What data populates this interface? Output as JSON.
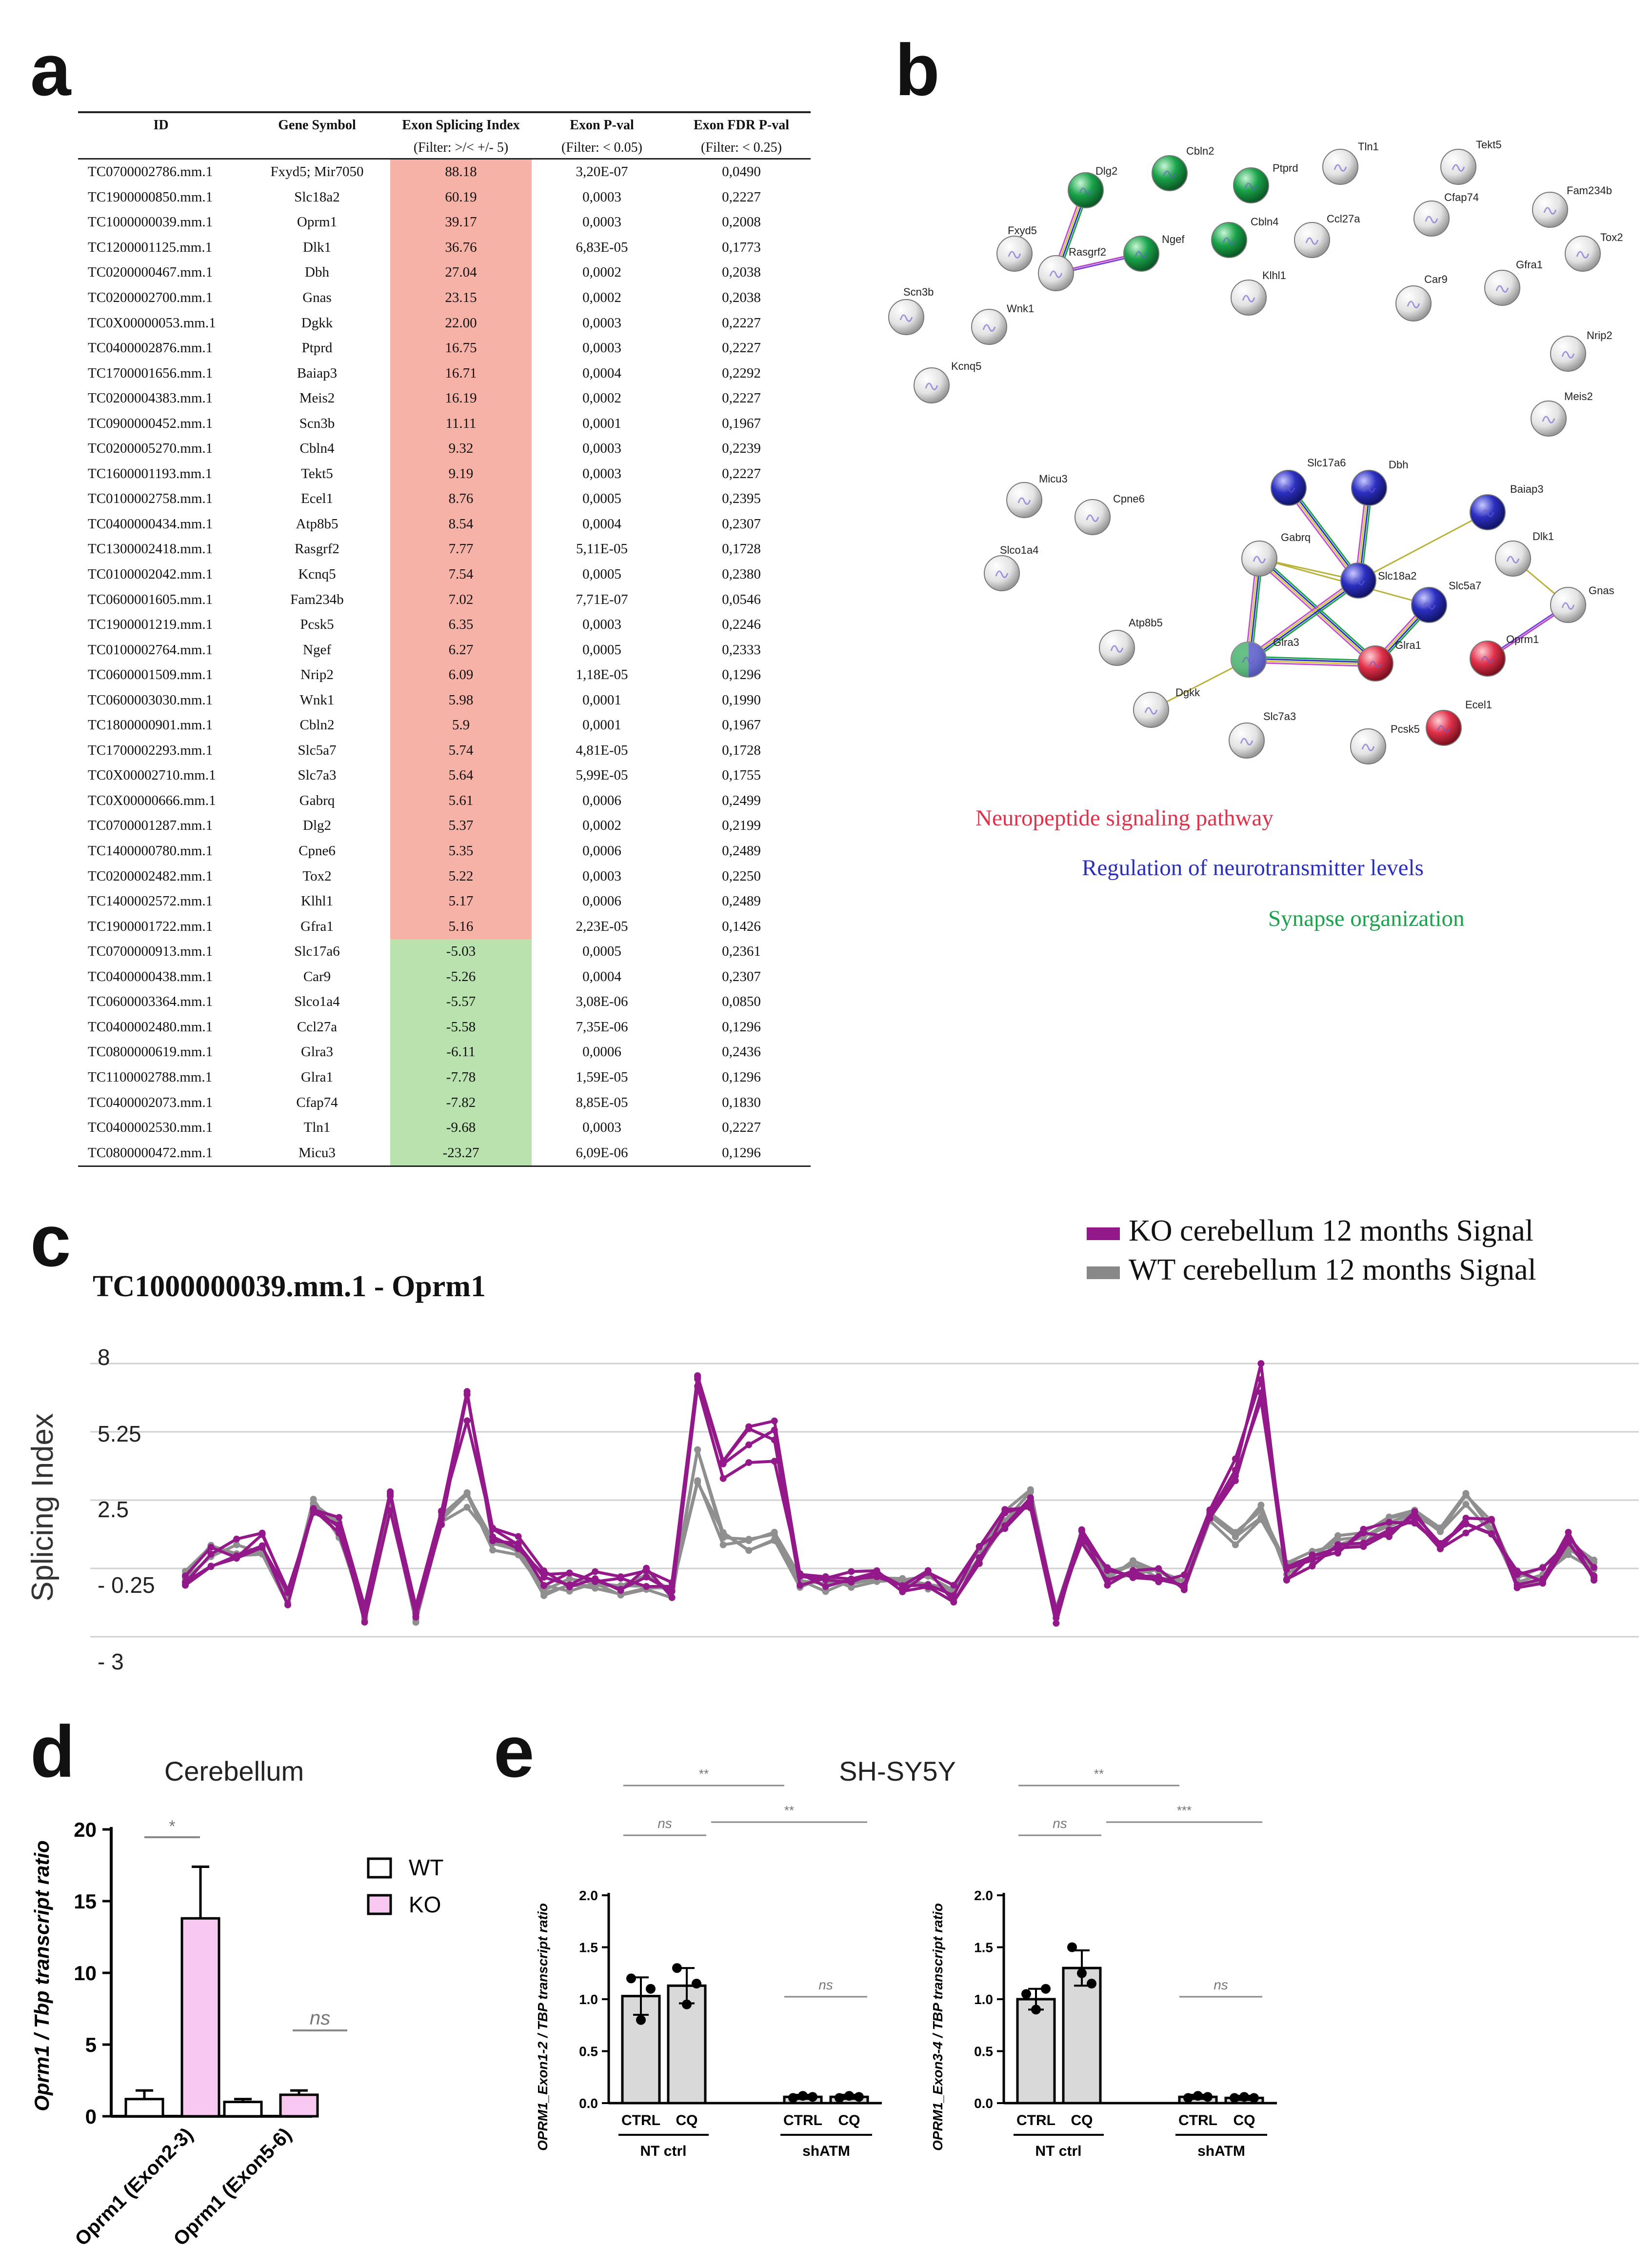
{
  "panels": {
    "a": "a",
    "b": "b",
    "c": "c",
    "d": "d",
    "e": "e"
  },
  "table": {
    "headers": [
      "ID",
      "Gene Symbol",
      "Exon Splicing Index",
      "Exon P-val",
      "Exon FDR P-val"
    ],
    "filters": [
      "",
      "",
      "(Filter: >/< +/- 5)",
      "(Filter: < 0.05)",
      "(Filter: < 0.25)"
    ],
    "rows": [
      [
        "TC0700002786.mm.1",
        "Fxyd5; Mir7050",
        "88.18",
        "3,20E-07",
        "0,0490"
      ],
      [
        "TC1900000850.mm.1",
        "Slc18a2",
        "60.19",
        "0,0003",
        "0,2227"
      ],
      [
        "TC1000000039.mm.1",
        "Oprm1",
        "39.17",
        "0,0003",
        "0,2008"
      ],
      [
        "TC1200001125.mm.1",
        "Dlk1",
        "36.76",
        "6,83E-05",
        "0,1773"
      ],
      [
        "TC0200000467.mm.1",
        "Dbh",
        "27.04",
        "0,0002",
        "0,2038"
      ],
      [
        "TC0200002700.mm.1",
        "Gnas",
        "23.15",
        "0,0002",
        "0,2038"
      ],
      [
        "TC0X00000053.mm.1",
        "Dgkk",
        "22.00",
        "0,0003",
        "0,2227"
      ],
      [
        "TC0400002876.mm.1",
        "Ptprd",
        "16.75",
        "0,0003",
        "0,2227"
      ],
      [
        "TC1700001656.mm.1",
        "Baiap3",
        "16.71",
        "0,0004",
        "0,2292"
      ],
      [
        "TC0200004383.mm.1",
        "Meis2",
        "16.19",
        "0,0002",
        "0,2227"
      ],
      [
        "TC0900000452.mm.1",
        "Scn3b",
        "11.11",
        "0,0001",
        "0,1967"
      ],
      [
        "TC0200005270.mm.1",
        "Cbln4",
        "9.32",
        "0,0003",
        "0,2239"
      ],
      [
        "TC1600001193.mm.1",
        "Tekt5",
        "9.19",
        "0,0003",
        "0,2227"
      ],
      [
        "TC0100002758.mm.1",
        "Ecel1",
        "8.76",
        "0,0005",
        "0,2395"
      ],
      [
        "TC0400000434.mm.1",
        "Atp8b5",
        "8.54",
        "0,0004",
        "0,2307"
      ],
      [
        "TC1300002418.mm.1",
        "Rasgrf2",
        "7.77",
        "5,11E-05",
        "0,1728"
      ],
      [
        "TC0100002042.mm.1",
        "Kcnq5",
        "7.54",
        "0,0005",
        "0,2380"
      ],
      [
        "TC0600001605.mm.1",
        "Fam234b",
        "7.02",
        "7,71E-07",
        "0,0546"
      ],
      [
        "TC1900001219.mm.1",
        "Pcsk5",
        "6.35",
        "0,0003",
        "0,2246"
      ],
      [
        "TC0100002764.mm.1",
        "Ngef",
        "6.27",
        "0,0005",
        "0,2333"
      ],
      [
        "TC0600001509.mm.1",
        "Nrip2",
        "6.09",
        "1,18E-05",
        "0,1296"
      ],
      [
        "TC0600003030.mm.1",
        "Wnk1",
        "5.98",
        "0,0001",
        "0,1990"
      ],
      [
        "TC1800000901.mm.1",
        "Cbln2",
        "5.9",
        "0,0001",
        "0,1967"
      ],
      [
        "TC1700002293.mm.1",
        "Slc5a7",
        "5.74",
        "4,81E-05",
        "0,1728"
      ],
      [
        "TC0X00002710.mm.1",
        "Slc7a3",
        "5.64",
        "5,99E-05",
        "0,1755"
      ],
      [
        "TC0X00000666.mm.1",
        "Gabrq",
        "5.61",
        "0,0006",
        "0,2499"
      ],
      [
        "TC0700001287.mm.1",
        "Dlg2",
        "5.37",
        "0,0002",
        "0,2199"
      ],
      [
        "TC1400000780.mm.1",
        "Cpne6",
        "5.35",
        "0,0006",
        "0,2489"
      ],
      [
        "TC0200002482.mm.1",
        "Tox2",
        "5.22",
        "0,0003",
        "0,2250"
      ],
      [
        "TC1400002572.mm.1",
        "Klhl1",
        "5.17",
        "0,0006",
        "0,2489"
      ],
      [
        "TC1900001722.mm.1",
        "Gfra1",
        "5.16",
        "2,23E-05",
        "0,1426"
      ],
      [
        "TC0700000913.mm.1",
        "Slc17a6",
        "-5.03",
        "0,0005",
        "0,2361"
      ],
      [
        "TC0400000438.mm.1",
        "Car9",
        "-5.26",
        "0,0004",
        "0,2307"
      ],
      [
        "TC0600003364.mm.1",
        "Slco1a4",
        "-5.57",
        "3,08E-06",
        "0,0850"
      ],
      [
        "TC0400002480.mm.1",
        "Ccl27a",
        "-5.58",
        "7,35E-06",
        "0,1296"
      ],
      [
        "TC0800000619.mm.1",
        "Glra3",
        "-6.11",
        "0,0006",
        "0,2436"
      ],
      [
        "TC1100002788.mm.1",
        "Glra1",
        "-7.78",
        "1,59E-05",
        "0,1296"
      ],
      [
        "TC0400002073.mm.1",
        "Cfap74",
        "-7.82",
        "8,85E-05",
        "0,1830"
      ],
      [
        "TC0400002530.mm.1",
        "Tln1",
        "-9.68",
        "0,0003",
        "0,2227"
      ],
      [
        "TC0800000472.mm.1",
        "Micu3",
        "-23.27",
        "6,09E-06",
        "0,1296"
      ]
    ]
  },
  "network": {
    "colors": {
      "neuropeptide": "#e0314a",
      "neurotransmitter": "#2b2fc0",
      "synapse": "#1aa34a",
      "none": "#cfcfcf"
    },
    "nodes": [
      {
        "label": "Dlg2",
        "cls": "synapse"
      },
      {
        "label": "Cbln2",
        "cls": "synapse"
      },
      {
        "label": "Ptprd",
        "cls": "synapse"
      },
      {
        "label": "Tln1",
        "cls": "none"
      },
      {
        "label": "Tekt5",
        "cls": "none"
      },
      {
        "label": "Fxyd5",
        "cls": "none"
      },
      {
        "label": "Rasgrf2",
        "cls": "none"
      },
      {
        "label": "Ngef",
        "cls": "synapse"
      },
      {
        "label": "Cbln4",
        "cls": "synapse"
      },
      {
        "label": "Ccl27a",
        "cls": "none"
      },
      {
        "label": "Cfap74",
        "cls": "none"
      },
      {
        "label": "Fam234b",
        "cls": "none"
      },
      {
        "label": "Tox2",
        "cls": "none"
      },
      {
        "label": "Scn3b",
        "cls": "none"
      },
      {
        "label": "Wnk1",
        "cls": "none"
      },
      {
        "label": "Klhl1",
        "cls": "none"
      },
      {
        "label": "Car9",
        "cls": "none"
      },
      {
        "label": "Gfra1",
        "cls": "none"
      },
      {
        "label": "Nrip2",
        "cls": "none"
      },
      {
        "label": "Kcnq5",
        "cls": "none"
      },
      {
        "label": "Meis2",
        "cls": "none"
      },
      {
        "label": "Slc17a6",
        "cls": "neurotransmitter"
      },
      {
        "label": "Dbh",
        "cls": "neurotransmitter"
      },
      {
        "label": "Micu3",
        "cls": "none"
      },
      {
        "label": "Cpne6",
        "cls": "none"
      },
      {
        "label": "Baiap3",
        "cls": "neurotransmitter"
      },
      {
        "label": "Slco1a4",
        "cls": "none"
      },
      {
        "label": "Gabrq",
        "cls": "none"
      },
      {
        "label": "Slc18a2",
        "cls": "neurotransmitter"
      },
      {
        "label": "Dlk1",
        "cls": "none"
      },
      {
        "label": "Gnas",
        "cls": "none"
      },
      {
        "label": "Slc5a7",
        "cls": "neurotransmitter"
      },
      {
        "label": "Atp8b5",
        "cls": "none"
      },
      {
        "label": "Glra3",
        "cls": "synapse"
      },
      {
        "label": "Glra1",
        "cls": "neuropeptide"
      },
      {
        "label": "Oprm1",
        "cls": "neuropeptide"
      },
      {
        "label": "Dgkk",
        "cls": "none"
      },
      {
        "label": "Ecel1",
        "cls": "neuropeptide"
      },
      {
        "label": "Slc7a3",
        "cls": "none"
      },
      {
        "label": "Pcsk5",
        "cls": "none"
      }
    ],
    "legend": [
      {
        "label": "Neuropeptide signaling pathway",
        "color": "#e0314a"
      },
      {
        "label": "Regulation of neurotransmitter levels",
        "color": "#2b2fc0"
      },
      {
        "label": "Synapse organization",
        "color": "#1aa34a"
      }
    ]
  },
  "panel_c": {
    "title": "TC1000000039.mm.1 - Oprm1",
    "legend": [
      {
        "label": "KO cerebellum 12 months Signal",
        "color": "#93198b"
      },
      {
        "label": "WT cerebellum 12 months Signal",
        "color": "#888888"
      }
    ]
  },
  "chart_data": [
    {
      "type": "line",
      "title": "TC1000000039.mm.1 - Oprm1",
      "ylabel": "Splicing Index",
      "yticks": [
        "8",
        "5.25",
        "2.5",
        "- 0.25",
        "- 3"
      ],
      "ylim": [
        -3,
        8
      ],
      "x": [
        1,
        2,
        3,
        4,
        5,
        6,
        7,
        8,
        9,
        10,
        11,
        12,
        13,
        14,
        15,
        16,
        17,
        18,
        19,
        20,
        21,
        22,
        23,
        24,
        25,
        26,
        27,
        28,
        29,
        30,
        31,
        32,
        33,
        34,
        35,
        36,
        37,
        38,
        39,
        40,
        41,
        42,
        43,
        44,
        45,
        46,
        47,
        48,
        49,
        50,
        51,
        52,
        53,
        54,
        55,
        56
      ],
      "ko_mean": [
        -1.0,
        0.2,
        0.5,
        1.0,
        -1.5,
        2.2,
        1.4,
        -2.0,
        2.5,
        -2.1,
        1.8,
        6.2,
        1.0,
        0.8,
        -0.6,
        -0.8,
        -0.8,
        -0.9,
        -0.6,
        -1.2,
        7.0,
        4.0,
        5.0,
        4.8,
        -0.5,
        -0.8,
        -0.6,
        -0.5,
        -1.0,
        -0.6,
        -1.3,
        0.2,
        1.8,
        2.5,
        -2.1,
        1.2,
        -0.6,
        -0.2,
        -0.5,
        -0.8,
        1.8,
        3.2,
        7.5,
        -0.3,
        -0.1,
        0.5,
        1.0,
        1.4,
        1.7,
        0.6,
        1.5,
        1.4,
        -0.6,
        -0.5,
        1.0,
        -0.5
      ],
      "wt_mean": [
        -0.6,
        0.4,
        0.4,
        0.6,
        -1.5,
        2.2,
        1.3,
        -2.0,
        2.5,
        -2.1,
        1.8,
        2.5,
        0.6,
        0.6,
        -1.1,
        -0.9,
        -0.9,
        -1.0,
        -0.8,
        -1.3,
        3.8,
        1.0,
        0.8,
        1.0,
        -0.7,
        -0.9,
        -0.8,
        -0.6,
        -1.0,
        -0.8,
        -1.3,
        0.3,
        1.9,
        2.6,
        -2.1,
        1.2,
        -0.6,
        -0.2,
        -0.6,
        -0.9,
        1.8,
        1.0,
        2.0,
        -0.2,
        0.3,
        0.8,
        1.0,
        1.6,
        2.0,
        1.4,
        2.6,
        1.5,
        -0.6,
        -0.5,
        0.5,
        -0.2
      ],
      "series": [
        {
          "name": "KO cerebellum 12 months Signal"
        },
        {
          "name": "WT cerebellum 12 months Signal"
        }
      ]
    },
    {
      "type": "bar",
      "title": "Cerebellum",
      "ylabel": "Oprm1 / Tbp transcript ratio",
      "categories": [
        "Oprm1 (Exon2-3)",
        "Oprm1 (Exon5-6)"
      ],
      "yticks": [
        "0",
        "5",
        "10",
        "15",
        "20"
      ],
      "ylim": [
        0,
        20
      ],
      "series": [
        {
          "name": "WT",
          "values": [
            1.2,
            1.0
          ],
          "errors": [
            0.6,
            0.2
          ]
        },
        {
          "name": "KO",
          "values": [
            13.8,
            1.5
          ],
          "errors": [
            3.6,
            0.3
          ]
        }
      ],
      "annotations": [
        "*",
        "ns"
      ]
    },
    {
      "type": "bar",
      "title": "SH-SY5Y",
      "ylabel": "OPRM1_Exon1-2 / TBP transcript ratio",
      "categories": [
        "CTRL",
        "CQ",
        "CTRL",
        "CQ"
      ],
      "groups": [
        "NT ctrl",
        "shATM"
      ],
      "yticks": [
        "0.0",
        "0.5",
        "1.0",
        "1.5",
        "2.0"
      ],
      "ylim": [
        0,
        2
      ],
      "values": [
        1.03,
        1.13,
        0.06,
        0.06
      ],
      "errors": [
        0.18,
        0.17,
        0.02,
        0.02
      ],
      "points": [
        [
          1.2,
          0.8,
          1.1
        ],
        [
          1.3,
          0.95,
          1.15
        ],
        [
          0.05,
          0.07,
          0.06
        ],
        [
          0.05,
          0.07,
          0.06
        ]
      ],
      "annotations": [
        "**",
        "ns",
        "**",
        "ns"
      ]
    },
    {
      "type": "bar",
      "title": "",
      "ylabel": "OPRM1_Exon3-4 / TBP transcript ratio",
      "categories": [
        "CTRL",
        "CQ",
        "CTRL",
        "CQ"
      ],
      "groups": [
        "NT ctrl",
        "shATM"
      ],
      "yticks": [
        "0.0",
        "0.5",
        "1.0",
        "1.5",
        "2.0"
      ],
      "ylim": [
        0,
        2
      ],
      "values": [
        1.0,
        1.3,
        0.06,
        0.05
      ],
      "errors": [
        0.1,
        0.17,
        0.02,
        0.02
      ],
      "points": [
        [
          1.05,
          0.9,
          1.1
        ],
        [
          1.5,
          1.25,
          1.15
        ],
        [
          0.05,
          0.07,
          0.06
        ],
        [
          0.05,
          0.06,
          0.05
        ]
      ],
      "annotations": [
        "**",
        "ns",
        "***",
        "ns"
      ]
    }
  ]
}
